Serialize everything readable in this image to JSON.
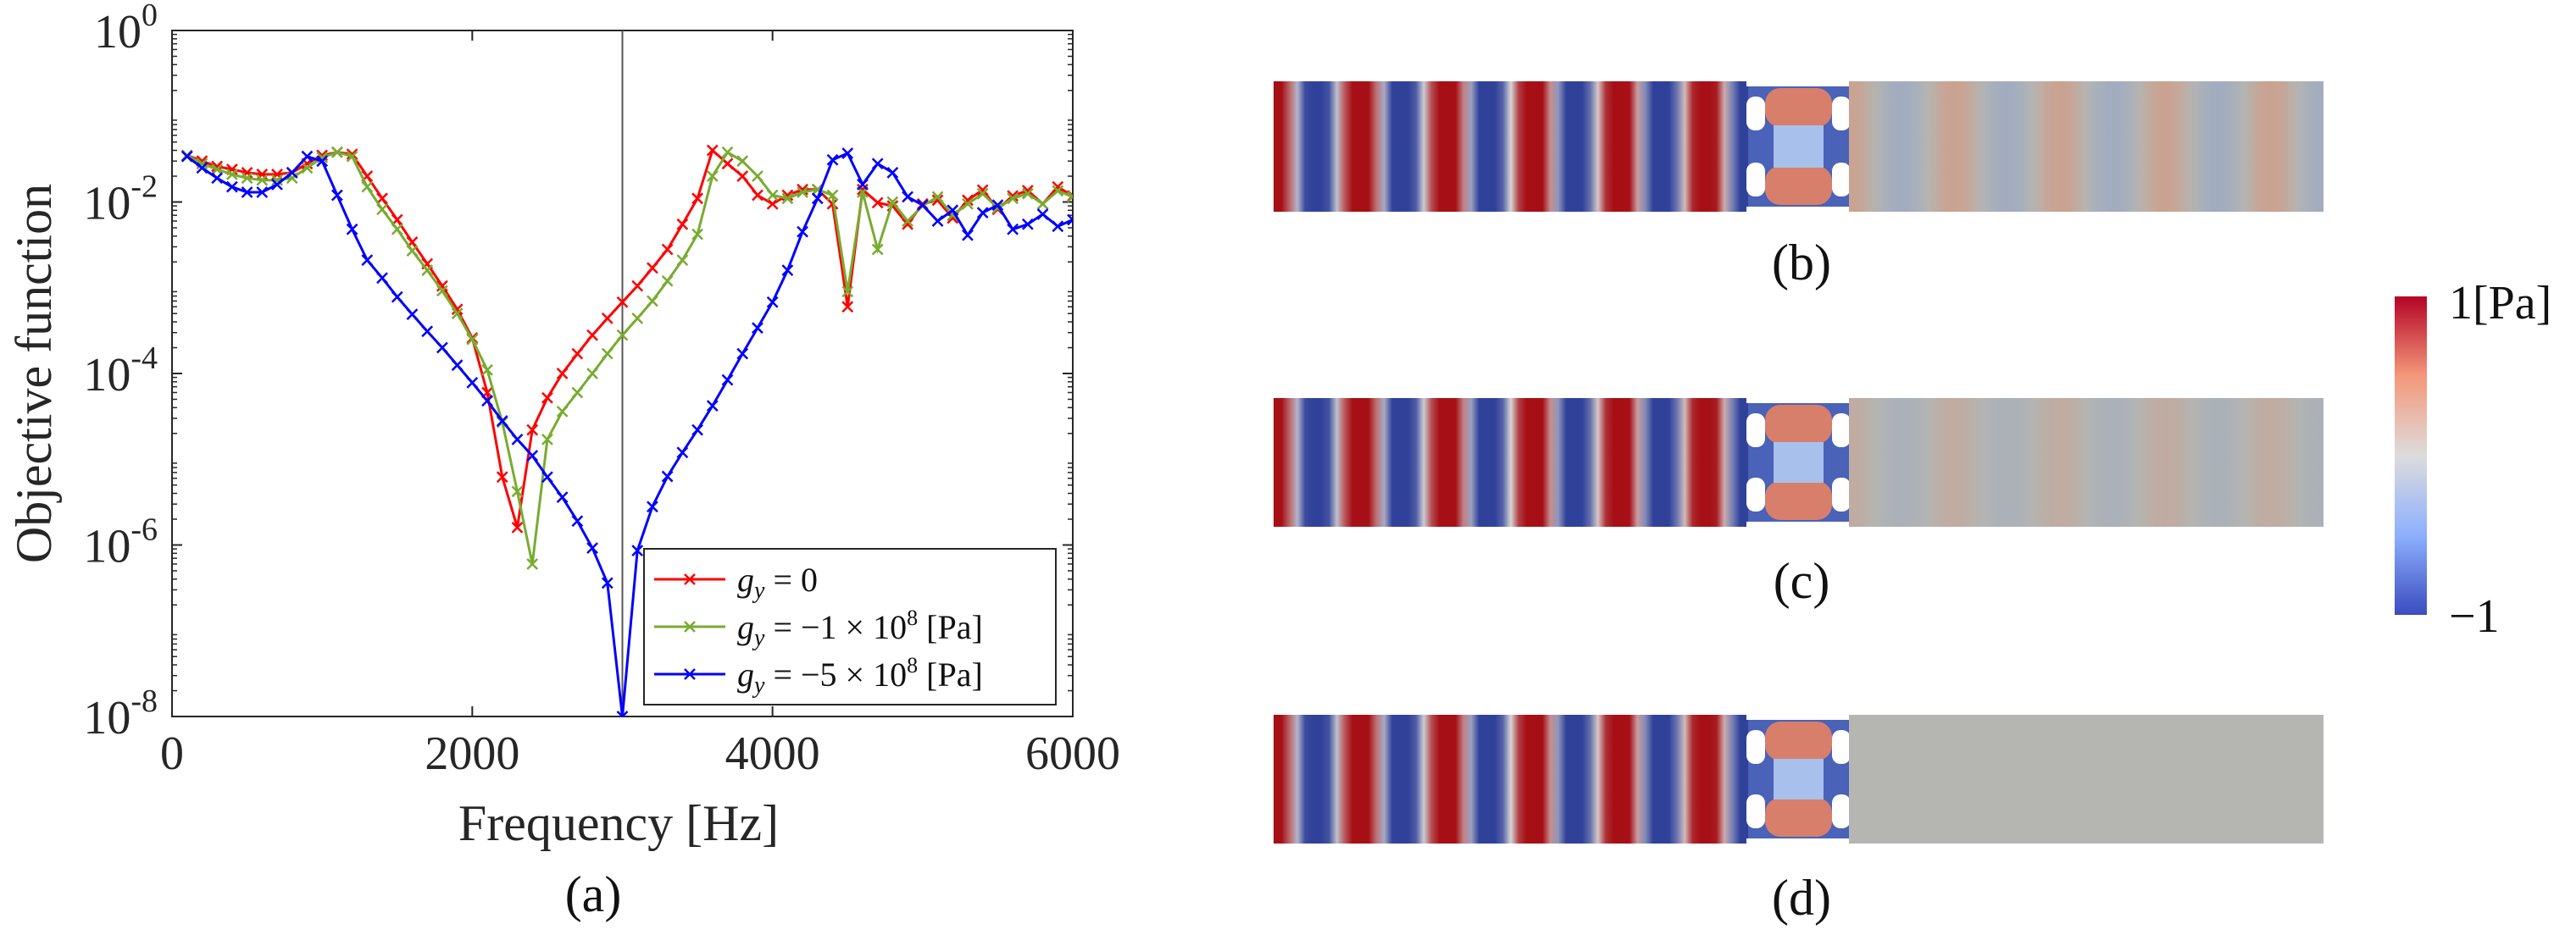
{
  "chart_data": [
    {
      "type": "line",
      "yscale": "log",
      "xlabel": "Frequency [Hz]",
      "ylabel": "Objective function",
      "panel_label": "(a)",
      "xlim": [
        0,
        6000
      ],
      "ylim": [
        1e-08,
        1
      ],
      "x_ticks": [
        "0",
        "2000",
        "4000",
        "6000"
      ],
      "y_ticks": [
        {
          "base": "10",
          "exp": "0"
        },
        {
          "base": "10",
          "exp": "-2"
        },
        {
          "base": "10",
          "exp": "-4"
        },
        {
          "base": "10",
          "exp": "-6"
        },
        {
          "base": "10",
          "exp": "-8"
        }
      ],
      "vertical_line_x": 3000,
      "legend_position": "bottom-right",
      "series": [
        {
          "name": "g_y = 0",
          "legend": {
            "pre": "g",
            "sub": "y",
            "post": " = 0",
            "exp": "",
            "unit": ""
          },
          "color": "#ff0000",
          "x": [
            100,
            200,
            300,
            400,
            500,
            600,
            700,
            800,
            900,
            1000,
            1100,
            1200,
            1300,
            1400,
            1500,
            1600,
            1700,
            1800,
            1900,
            2000,
            2100,
            2200,
            2300,
            2400,
            2500,
            2600,
            2700,
            2800,
            2900,
            3000,
            3100,
            3200,
            3300,
            3400,
            3500,
            3600,
            3700,
            3800,
            3900,
            4000,
            4100,
            4200,
            4300,
            4400,
            4500,
            4600,
            4700,
            4800,
            4900,
            5000,
            5100,
            5200,
            5300,
            5400,
            5500,
            5600,
            5700,
            5800,
            5900,
            6000
          ],
          "y": [
            0.035,
            0.03,
            0.026,
            0.024,
            0.022,
            0.021,
            0.021,
            0.022,
            0.028,
            0.035,
            0.038,
            0.036,
            0.02,
            0.011,
            0.0062,
            0.0034,
            0.0019,
            0.00105,
            0.00056,
            0.00026,
            6e-05,
            6.2e-06,
            1.6e-06,
            2.2e-05,
            5.2e-05,
            0.0001,
            0.00017,
            0.00028,
            0.00044,
            0.00068,
            0.00105,
            0.0017,
            0.0028,
            0.0055,
            0.011,
            0.04,
            0.028,
            0.02,
            0.012,
            0.0095,
            0.012,
            0.014,
            0.014,
            0.0095,
            0.0006,
            0.014,
            0.0098,
            0.009,
            0.0055,
            0.0095,
            0.0105,
            0.0065,
            0.0105,
            0.0138,
            0.0082,
            0.0118,
            0.0136,
            0.0095,
            0.015,
            0.0118
          ]
        },
        {
          "name": "g_y = −1 × 10^8 [Pa]",
          "legend": {
            "pre": "g",
            "sub": "y",
            "post": " = −1 × 10",
            "exp": "8",
            "unit": " [Pa]"
          },
          "color": "#77ac30",
          "x": [
            100,
            200,
            300,
            400,
            500,
            600,
            700,
            800,
            900,
            1000,
            1100,
            1200,
            1300,
            1400,
            1500,
            1600,
            1700,
            1800,
            1900,
            2000,
            2100,
            2200,
            2300,
            2400,
            2500,
            2600,
            2700,
            2800,
            2900,
            3000,
            3100,
            3200,
            3300,
            3400,
            3500,
            3600,
            3700,
            3800,
            3900,
            4000,
            4100,
            4200,
            4300,
            4400,
            4500,
            4600,
            4700,
            4800,
            4900,
            5000,
            5100,
            5200,
            5300,
            5400,
            5500,
            5600,
            5700,
            5800,
            5900,
            6000
          ],
          "y": [
            0.035,
            0.028,
            0.024,
            0.021,
            0.019,
            0.018,
            0.018,
            0.019,
            0.025,
            0.033,
            0.038,
            0.034,
            0.015,
            0.0082,
            0.0048,
            0.0027,
            0.0016,
            0.00092,
            0.0005,
            0.00025,
            0.00011,
            2.7e-05,
            4.2e-06,
            6e-07,
            1.7e-05,
            3.6e-05,
            6e-05,
            0.0001,
            0.00017,
            0.00028,
            0.00044,
            0.0007,
            0.0012,
            0.0021,
            0.0042,
            0.02,
            0.038,
            0.03,
            0.02,
            0.012,
            0.011,
            0.013,
            0.014,
            0.012,
            0.0009,
            0.013,
            0.0028,
            0.01,
            0.006,
            0.009,
            0.0115,
            0.007,
            0.0095,
            0.0125,
            0.0085,
            0.011,
            0.0125,
            0.0095,
            0.0135,
            0.0115
          ]
        },
        {
          "name": "g_y = −5 × 10^8 [Pa]",
          "legend": {
            "pre": "g",
            "sub": "y",
            "post": " = −5 × 10",
            "exp": "8",
            "unit": " [Pa]"
          },
          "color": "#0000ff",
          "x": [
            100,
            200,
            300,
            400,
            500,
            600,
            700,
            800,
            900,
            1000,
            1100,
            1200,
            1300,
            1400,
            1500,
            1600,
            1700,
            1800,
            1900,
            2000,
            2100,
            2200,
            2300,
            2400,
            2500,
            2600,
            2700,
            2800,
            2900,
            3000,
            3100,
            3200,
            3300,
            3400,
            3500,
            3600,
            3700,
            3800,
            3900,
            4000,
            4100,
            4200,
            4300,
            4400,
            4500,
            4600,
            4700,
            4800,
            4900,
            5000,
            5100,
            5200,
            5300,
            5400,
            5500,
            5600,
            5700,
            5800,
            5900,
            6000
          ],
          "y": [
            0.034,
            0.025,
            0.019,
            0.015,
            0.013,
            0.013,
            0.016,
            0.022,
            0.034,
            0.03,
            0.012,
            0.0048,
            0.0021,
            0.0013,
            0.00078,
            0.00049,
            0.00031,
            0.0002,
            0.000125,
            7.8e-05,
            4.8e-05,
            2.8e-05,
            1.7e-05,
            1.1e-05,
            6.2e-06,
            3.6e-06,
            1.9e-06,
            9.2e-07,
            3.6e-07,
            1e-08,
            8.6e-07,
            2.8e-06,
            6.3e-06,
            1.2e-05,
            2.2e-05,
            4.2e-05,
            8.4e-05,
            0.00017,
            0.00034,
            0.00068,
            0.0016,
            0.0045,
            0.011,
            0.031,
            0.037,
            0.016,
            0.028,
            0.022,
            0.0115,
            0.0092,
            0.006,
            0.008,
            0.0041,
            0.0075,
            0.0092,
            0.0048,
            0.0055,
            0.0072,
            0.0052,
            0.0062
          ]
        }
      ]
    },
    {
      "type": "heatmap",
      "panels": [
        "(b)",
        "(c)",
        "(d)"
      ],
      "colorbar": {
        "max_label": "1[Pa]",
        "min_label": "−1",
        "range": [
          -1,
          1
        ],
        "colormap": "coolwarm"
      },
      "colors": {
        "red": "#a50f15",
        "blue": "#30419a",
        "gray": "#b5b5b2"
      },
      "field_b": {
        "left_waves": 5.5,
        "right_amplitude": 0.3
      },
      "field_c": {
        "left_waves": 5.5,
        "right_amplitude": 0.15
      },
      "field_d": {
        "left_waves": 5.5,
        "right_amplitude": 0.0
      }
    }
  ]
}
